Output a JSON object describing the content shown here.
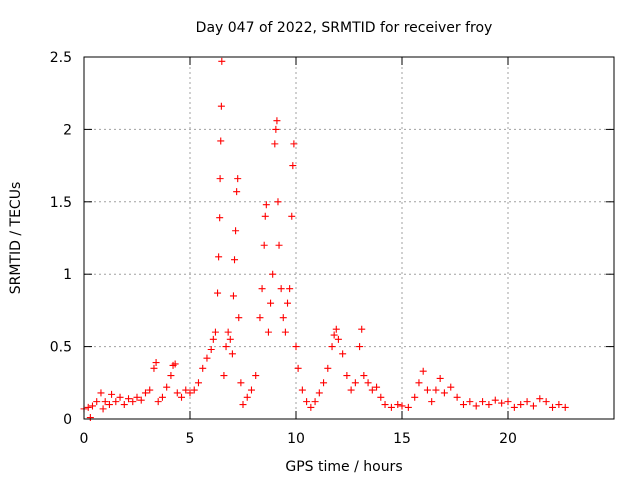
{
  "chart_data": {
    "type": "scatter",
    "title": "Day 047 of 2022, SRMTID for receiver froy",
    "xlabel": "GPS time / hours",
    "ylabel": "SRMTID / TECUs",
    "xlim": [
      0,
      25
    ],
    "ylim": [
      0,
      2.5
    ],
    "xticks": [
      0,
      5,
      10,
      15,
      20
    ],
    "xtick_labels": [
      "0",
      "5",
      "10",
      "15",
      "20"
    ],
    "yticks": [
      0,
      0.5,
      1,
      1.5,
      2,
      2.5
    ],
    "ytick_labels": [
      "0",
      "0.5",
      "1",
      "1.5",
      "2",
      "2.5"
    ],
    "grid": true,
    "marker": "+",
    "series": [
      {
        "name": "SRMTID",
        "color": "#ff0000",
        "points": [
          [
            0.0,
            0.07
          ],
          [
            0.2,
            0.08
          ],
          [
            0.3,
            0.01
          ],
          [
            0.4,
            0.09
          ],
          [
            0.6,
            0.12
          ],
          [
            0.8,
            0.18
          ],
          [
            0.9,
            0.07
          ],
          [
            1.0,
            0.12
          ],
          [
            1.2,
            0.1
          ],
          [
            1.3,
            0.17
          ],
          [
            1.5,
            0.12
          ],
          [
            1.7,
            0.15
          ],
          [
            1.9,
            0.1
          ],
          [
            2.1,
            0.14
          ],
          [
            2.3,
            0.12
          ],
          [
            2.5,
            0.15
          ],
          [
            2.7,
            0.13
          ],
          [
            2.9,
            0.18
          ],
          [
            3.1,
            0.2
          ],
          [
            3.3,
            0.35
          ],
          [
            3.4,
            0.39
          ],
          [
            3.5,
            0.12
          ],
          [
            3.7,
            0.15
          ],
          [
            3.9,
            0.22
          ],
          [
            4.1,
            0.3
          ],
          [
            4.2,
            0.37
          ],
          [
            4.3,
            0.38
          ],
          [
            4.4,
            0.18
          ],
          [
            4.6,
            0.15
          ],
          [
            4.8,
            0.2
          ],
          [
            5.0,
            0.18
          ],
          [
            5.2,
            0.2
          ],
          [
            5.4,
            0.25
          ],
          [
            5.6,
            0.35
          ],
          [
            5.8,
            0.42
          ],
          [
            6.0,
            0.48
          ],
          [
            6.1,
            0.55
          ],
          [
            6.2,
            0.6
          ],
          [
            6.3,
            0.87
          ],
          [
            6.35,
            1.12
          ],
          [
            6.4,
            1.39
          ],
          [
            6.42,
            1.66
          ],
          [
            6.45,
            1.92
          ],
          [
            6.48,
            2.16
          ],
          [
            6.5,
            2.47
          ],
          [
            6.6,
            0.3
          ],
          [
            6.7,
            0.5
          ],
          [
            6.8,
            0.6
          ],
          [
            6.9,
            0.55
          ],
          [
            7.0,
            0.45
          ],
          [
            7.05,
            0.85
          ],
          [
            7.1,
            1.1
          ],
          [
            7.15,
            1.3
          ],
          [
            7.2,
            1.57
          ],
          [
            7.25,
            1.66
          ],
          [
            7.3,
            0.7
          ],
          [
            7.4,
            0.25
          ],
          [
            7.5,
            0.1
          ],
          [
            7.7,
            0.15
          ],
          [
            7.9,
            0.2
          ],
          [
            8.1,
            0.3
          ],
          [
            8.3,
            0.7
          ],
          [
            8.4,
            0.9
          ],
          [
            8.5,
            1.2
          ],
          [
            8.55,
            1.4
          ],
          [
            8.6,
            1.48
          ],
          [
            8.7,
            0.6
          ],
          [
            8.8,
            0.8
          ],
          [
            8.9,
            1.0
          ],
          [
            9.0,
            1.9
          ],
          [
            9.05,
            2.0
          ],
          [
            9.1,
            2.06
          ],
          [
            9.15,
            1.5
          ],
          [
            9.2,
            1.2
          ],
          [
            9.3,
            0.9
          ],
          [
            9.4,
            0.7
          ],
          [
            9.5,
            0.6
          ],
          [
            9.6,
            0.8
          ],
          [
            9.7,
            0.9
          ],
          [
            9.8,
            1.4
          ],
          [
            9.85,
            1.75
          ],
          [
            9.9,
            1.9
          ],
          [
            10.0,
            0.5
          ],
          [
            10.1,
            0.35
          ],
          [
            10.3,
            0.2
          ],
          [
            10.5,
            0.12
          ],
          [
            10.7,
            0.08
          ],
          [
            10.9,
            0.12
          ],
          [
            11.1,
            0.18
          ],
          [
            11.3,
            0.25
          ],
          [
            11.5,
            0.35
          ],
          [
            11.7,
            0.5
          ],
          [
            11.8,
            0.58
          ],
          [
            11.9,
            0.62
          ],
          [
            12.0,
            0.55
          ],
          [
            12.2,
            0.45
          ],
          [
            12.4,
            0.3
          ],
          [
            12.6,
            0.2
          ],
          [
            12.8,
            0.25
          ],
          [
            13.0,
            0.5
          ],
          [
            13.1,
            0.62
          ],
          [
            13.2,
            0.3
          ],
          [
            13.4,
            0.25
          ],
          [
            13.6,
            0.2
          ],
          [
            13.8,
            0.22
          ],
          [
            14.0,
            0.15
          ],
          [
            14.2,
            0.1
          ],
          [
            14.5,
            0.08
          ],
          [
            14.8,
            0.1
          ],
          [
            15.0,
            0.09
          ],
          [
            15.3,
            0.08
          ],
          [
            15.6,
            0.15
          ],
          [
            15.8,
            0.25
          ],
          [
            16.0,
            0.33
          ],
          [
            16.2,
            0.2
          ],
          [
            16.4,
            0.12
          ],
          [
            16.6,
            0.2
          ],
          [
            16.8,
            0.28
          ],
          [
            17.0,
            0.18
          ],
          [
            17.3,
            0.22
          ],
          [
            17.6,
            0.15
          ],
          [
            17.9,
            0.1
          ],
          [
            18.2,
            0.12
          ],
          [
            18.5,
            0.09
          ],
          [
            18.8,
            0.12
          ],
          [
            19.1,
            0.1
          ],
          [
            19.4,
            0.13
          ],
          [
            19.7,
            0.11
          ],
          [
            20.0,
            0.12
          ],
          [
            20.3,
            0.08
          ],
          [
            20.6,
            0.1
          ],
          [
            20.9,
            0.12
          ],
          [
            21.2,
            0.09
          ],
          [
            21.5,
            0.14
          ],
          [
            21.8,
            0.12
          ],
          [
            22.1,
            0.08
          ],
          [
            22.4,
            0.1
          ],
          [
            22.7,
            0.08
          ]
        ]
      }
    ]
  }
}
